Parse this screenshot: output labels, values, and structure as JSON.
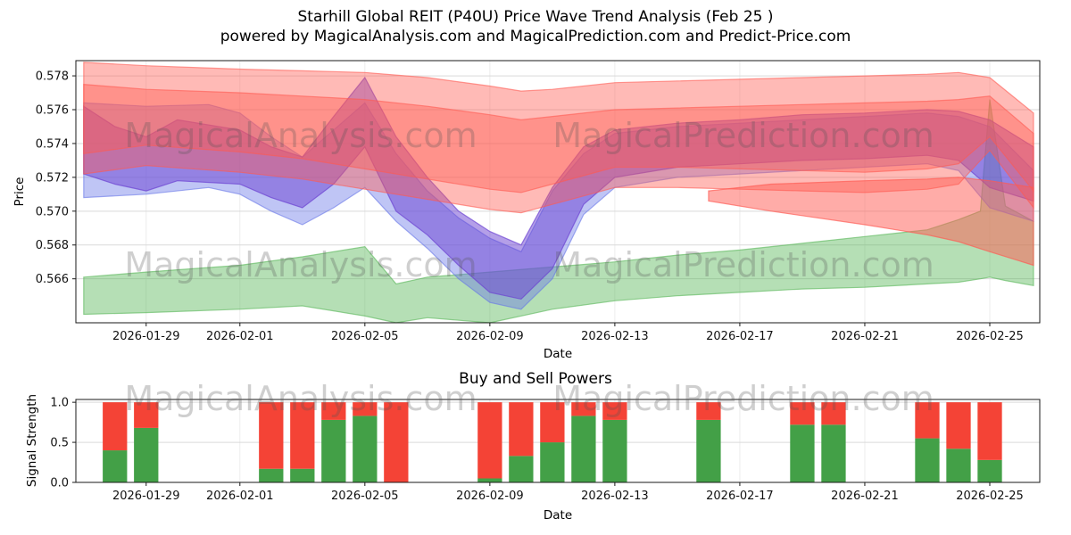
{
  "watermarks": {
    "analysis": "MagicalAnalysis.com",
    "prediction": "MagicalPrediction.com"
  },
  "chart_data": [
    {
      "type": "area",
      "name": "price-wave",
      "title": "Starhill Global REIT (P40U) Price Wave Trend Analysis (Feb 25 )",
      "subtitle": "powered by MagicalAnalysis.com and MagicalPrediction.com and Predict-Price.com",
      "xlabel": "Date",
      "ylabel": "Price",
      "legend": "none",
      "grid": true,
      "xlim": [
        -0.25,
        30.6
      ],
      "ylim": [
        0.5634,
        0.5789
      ],
      "yticks": [
        {
          "v": 0.566,
          "label": "0.566"
        },
        {
          "v": 0.568,
          "label": "0.568"
        },
        {
          "v": 0.57,
          "label": "0.570"
        },
        {
          "v": 0.572,
          "label": "0.572"
        },
        {
          "v": 0.574,
          "label": "0.574"
        },
        {
          "v": 0.576,
          "label": "0.576"
        },
        {
          "v": 0.578,
          "label": "0.578"
        }
      ],
      "xticks": [
        {
          "idx": 2,
          "label": "2026-01-29"
        },
        {
          "idx": 5,
          "label": "2026-02-01"
        },
        {
          "idx": 9,
          "label": "2026-02-05"
        },
        {
          "idx": 13,
          "label": "2026-02-09"
        },
        {
          "idx": 17,
          "label": "2026-02-13"
        },
        {
          "idx": 21,
          "label": "2026-02-17"
        },
        {
          "idx": 25,
          "label": "2026-02-21"
        },
        {
          "idx": 29,
          "label": "2026-02-25"
        }
      ],
      "bands": [
        {
          "name": "green-support-band",
          "color": "#5cb85c",
          "opacity": 0.45,
          "points": [
            [
              0,
              0.5639,
              0.5661
            ],
            [
              2,
              0.564,
              0.5664
            ],
            [
              5,
              0.5642,
              0.5668
            ],
            [
              7,
              0.5644,
              0.5673
            ],
            [
              9,
              0.5638,
              0.5679
            ],
            [
              10,
              0.5634,
              0.5657
            ],
            [
              11,
              0.5637,
              0.5661
            ],
            [
              13,
              0.5634,
              0.5664
            ],
            [
              15,
              0.5642,
              0.5667
            ],
            [
              17,
              0.5647,
              0.567
            ],
            [
              19,
              0.565,
              0.5674
            ],
            [
              21,
              0.5652,
              0.5677
            ],
            [
              23,
              0.5654,
              0.5681
            ],
            [
              25,
              0.5655,
              0.5685
            ],
            [
              27,
              0.5657,
              0.5689
            ],
            [
              28,
              0.5658,
              0.5695
            ],
            [
              28.7,
              0.566,
              0.57
            ],
            [
              29,
              0.5661,
              0.5766
            ],
            [
              29.5,
              0.5659,
              0.5703
            ],
            [
              30.4,
              0.5656,
              0.5694
            ]
          ]
        },
        {
          "name": "blue-wave-band",
          "color": "#6674e8",
          "opacity": 0.42,
          "points": [
            [
              0,
              0.5708,
              0.5764
            ],
            [
              2,
              0.571,
              0.5762
            ],
            [
              4,
              0.5714,
              0.5763
            ],
            [
              5,
              0.571,
              0.5758
            ],
            [
              6,
              0.57,
              0.5744
            ],
            [
              7,
              0.5692,
              0.5732
            ],
            [
              8,
              0.5702,
              0.5748
            ],
            [
              9,
              0.5714,
              0.5764
            ],
            [
              10,
              0.5694,
              0.5734
            ],
            [
              11,
              0.5678,
              0.5712
            ],
            [
              12,
              0.566,
              0.5696
            ],
            [
              13,
              0.5646,
              0.5684
            ],
            [
              14,
              0.5642,
              0.5676
            ],
            [
              15,
              0.566,
              0.5712
            ],
            [
              16,
              0.5698,
              0.5734
            ],
            [
              17,
              0.5714,
              0.5746
            ],
            [
              19,
              0.572,
              0.575
            ],
            [
              21,
              0.5722,
              0.5752
            ],
            [
              23,
              0.5724,
              0.5754
            ],
            [
              25,
              0.5726,
              0.5756
            ],
            [
              27,
              0.5728,
              0.5758
            ],
            [
              28,
              0.5724,
              0.5756
            ],
            [
              29,
              0.5702,
              0.575
            ],
            [
              30.4,
              0.5694,
              0.5724
            ]
          ]
        },
        {
          "name": "purple-wave-band",
          "color": "#6a3fd1",
          "opacity": 0.5,
          "points": [
            [
              0,
              0.5722,
              0.5762
            ],
            [
              1,
              0.5716,
              0.575
            ],
            [
              2,
              0.5712,
              0.5744
            ],
            [
              3,
              0.5718,
              0.5754
            ],
            [
              5,
              0.5716,
              0.5748
            ],
            [
              6,
              0.5708,
              0.5738
            ],
            [
              7,
              0.5702,
              0.5732
            ],
            [
              8,
              0.5716,
              0.5756
            ],
            [
              9,
              0.5738,
              0.5779
            ],
            [
              10,
              0.57,
              0.5744
            ],
            [
              11,
              0.5686,
              0.572
            ],
            [
              12,
              0.5668,
              0.57
            ],
            [
              13,
              0.5652,
              0.5688
            ],
            [
              14,
              0.5648,
              0.568
            ],
            [
              15,
              0.5666,
              0.5714
            ],
            [
              16,
              0.5704,
              0.5738
            ],
            [
              17,
              0.572,
              0.5748
            ],
            [
              19,
              0.5726,
              0.5752
            ],
            [
              21,
              0.5728,
              0.5754
            ],
            [
              23,
              0.573,
              0.5757
            ],
            [
              25,
              0.5731,
              0.5758
            ],
            [
              27,
              0.5733,
              0.576
            ],
            [
              28,
              0.573,
              0.5759
            ],
            [
              29,
              0.5714,
              0.5754
            ],
            [
              30.4,
              0.5706,
              0.5738
            ]
          ]
        },
        {
          "name": "red-lower-band",
          "color": "#ff5a52",
          "opacity": 0.5,
          "points": [
            [
              20,
              0.5706,
              0.5712
            ],
            [
              22,
              0.57,
              0.5716
            ],
            [
              25,
              0.5692,
              0.5718
            ],
            [
              27,
              0.5686,
              0.5719
            ],
            [
              28,
              0.5682,
              0.572
            ],
            [
              29,
              0.5676,
              0.5718
            ],
            [
              30.4,
              0.5668,
              0.5714
            ]
          ]
        },
        {
          "name": "red-resistance-outer-band",
          "color": "#ff5a52",
          "opacity": 0.42,
          "points": [
            [
              0,
              0.5722,
              0.5788
            ],
            [
              2,
              0.5727,
              0.5786
            ],
            [
              5,
              0.5723,
              0.5784
            ],
            [
              7,
              0.5719,
              0.5783
            ],
            [
              9,
              0.5713,
              0.5782
            ],
            [
              11,
              0.5707,
              0.5779
            ],
            [
              13,
              0.5701,
              0.5774
            ],
            [
              14,
              0.5699,
              0.5771
            ],
            [
              15,
              0.5704,
              0.5772
            ],
            [
              17,
              0.5714,
              0.5776
            ],
            [
              19,
              0.5714,
              0.5777
            ],
            [
              21,
              0.5713,
              0.5778
            ],
            [
              23,
              0.5712,
              0.5779
            ],
            [
              25,
              0.5711,
              0.578
            ],
            [
              27,
              0.5713,
              0.5781
            ],
            [
              28,
              0.5716,
              0.5782
            ],
            [
              29,
              0.5736,
              0.5779
            ],
            [
              30.4,
              0.5702,
              0.5758
            ]
          ]
        },
        {
          "name": "red-resistance-inner-band",
          "color": "#ff5a52",
          "opacity": 0.42,
          "points": [
            [
              0,
              0.5734,
              0.5775
            ],
            [
              2,
              0.5739,
              0.5772
            ],
            [
              5,
              0.5735,
              0.577
            ],
            [
              7,
              0.5731,
              0.5768
            ],
            [
              9,
              0.5725,
              0.5766
            ],
            [
              11,
              0.5719,
              0.5762
            ],
            [
              13,
              0.5713,
              0.5757
            ],
            [
              14,
              0.5711,
              0.5754
            ],
            [
              15,
              0.5716,
              0.5756
            ],
            [
              17,
              0.5726,
              0.576
            ],
            [
              19,
              0.5726,
              0.5761
            ],
            [
              21,
              0.5725,
              0.5762
            ],
            [
              23,
              0.5724,
              0.5763
            ],
            [
              25,
              0.5723,
              0.5764
            ],
            [
              27,
              0.5725,
              0.5765
            ],
            [
              28,
              0.5728,
              0.5766
            ],
            [
              29,
              0.5744,
              0.5768
            ],
            [
              30.4,
              0.5712,
              0.5746
            ]
          ]
        }
      ]
    },
    {
      "type": "bar",
      "name": "signal-strength",
      "title": "Buy and Sell Powers",
      "xlabel": "Date",
      "ylabel": "Signal Strength",
      "grid": true,
      "xlim": [
        -0.25,
        30.6
      ],
      "ylim": [
        0,
        1.035
      ],
      "bar_width_days": 0.78,
      "bar_colors": {
        "buy": "#43a047",
        "sell": "#f44336"
      },
      "yticks": [
        {
          "v": 0.0,
          "label": "0.0"
        },
        {
          "v": 0.5,
          "label": "0.5"
        },
        {
          "v": 1.0,
          "label": "1.0"
        }
      ],
      "xticks": [
        {
          "idx": 2,
          "label": "2026-01-29"
        },
        {
          "idx": 5,
          "label": "2026-02-01"
        },
        {
          "idx": 9,
          "label": "2026-02-05"
        },
        {
          "idx": 13,
          "label": "2026-02-09"
        },
        {
          "idx": 17,
          "label": "2026-02-13"
        },
        {
          "idx": 21,
          "label": "2026-02-17"
        },
        {
          "idx": 25,
          "label": "2026-02-21"
        },
        {
          "idx": 29,
          "label": "2026-02-25"
        }
      ],
      "bars": [
        {
          "date": "2026-01-28",
          "idx": 1,
          "buy": 0.4,
          "sell": 0.6
        },
        {
          "date": "2026-01-29",
          "idx": 2,
          "buy": 0.68,
          "sell": 0.32
        },
        {
          "date": "2026-02-02",
          "idx": 6,
          "buy": 0.17,
          "sell": 0.83
        },
        {
          "date": "2026-02-03",
          "idx": 7,
          "buy": 0.17,
          "sell": 0.83
        },
        {
          "date": "2026-02-04",
          "idx": 8,
          "buy": 0.78,
          "sell": 0.22
        },
        {
          "date": "2026-02-05",
          "idx": 9,
          "buy": 0.83,
          "sell": 0.17
        },
        {
          "date": "2026-02-06",
          "idx": 10,
          "buy": 0.0,
          "sell": 1.0
        },
        {
          "date": "2026-02-09",
          "idx": 13,
          "buy": 0.05,
          "sell": 0.95
        },
        {
          "date": "2026-02-10",
          "idx": 14,
          "buy": 0.33,
          "sell": 0.67
        },
        {
          "date": "2026-02-11",
          "idx": 15,
          "buy": 0.5,
          "sell": 0.5
        },
        {
          "date": "2026-02-12",
          "idx": 16,
          "buy": 0.83,
          "sell": 0.17
        },
        {
          "date": "2026-02-13",
          "idx": 17,
          "buy": 0.78,
          "sell": 0.22
        },
        {
          "date": "2026-02-16",
          "idx": 20,
          "buy": 0.78,
          "sell": 0.22
        },
        {
          "date": "2026-02-19",
          "idx": 23,
          "buy": 0.72,
          "sell": 0.28
        },
        {
          "date": "2026-02-20",
          "idx": 24,
          "buy": 0.72,
          "sell": 0.28
        },
        {
          "date": "2026-02-23",
          "idx": 27,
          "buy": 0.55,
          "sell": 0.45
        },
        {
          "date": "2026-02-24",
          "idx": 28,
          "buy": 0.42,
          "sell": 0.58
        },
        {
          "date": "2026-02-25",
          "idx": 29,
          "buy": 0.28,
          "sell": 0.72
        }
      ]
    }
  ]
}
